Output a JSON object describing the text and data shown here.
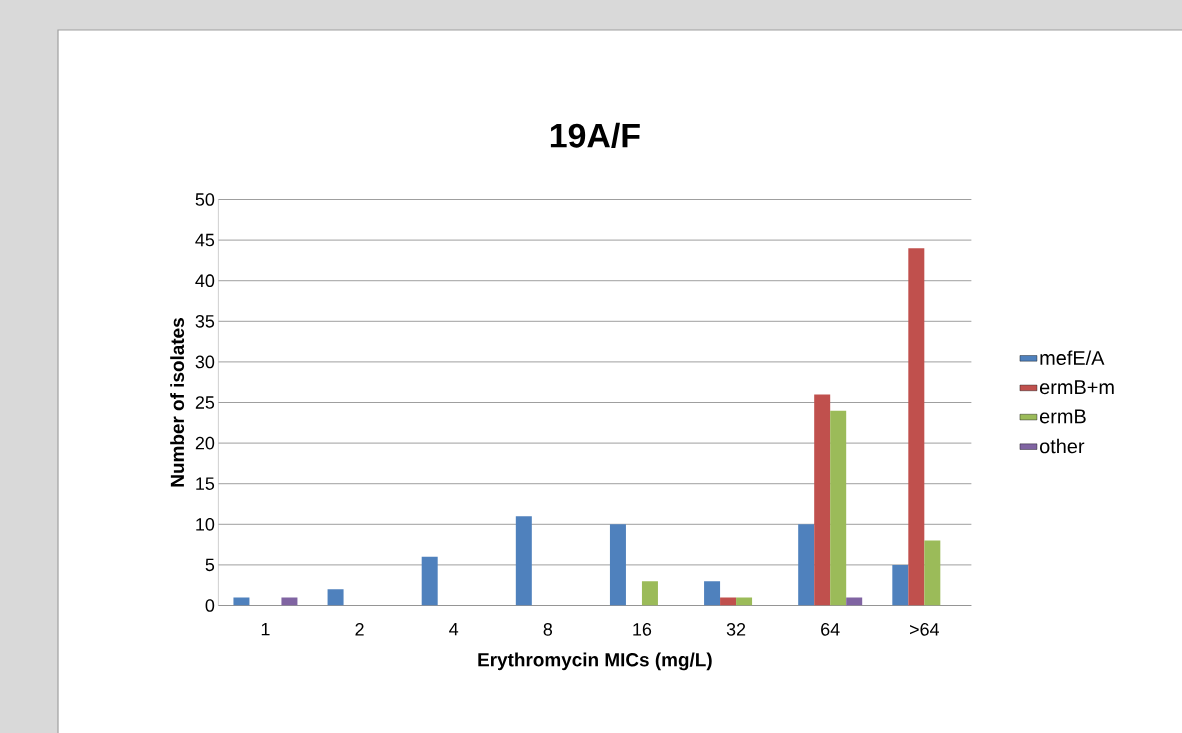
{
  "chart_data": {
    "type": "bar",
    "title": "19A/F",
    "xlabel": "Erythromycin MICs (mg/L)",
    "ylabel": "Number of isolates",
    "categories": [
      "1",
      "2",
      "4",
      "8",
      "16",
      "32",
      "64",
      ">64"
    ],
    "series": [
      {
        "name": "mefE/A",
        "color": "#4f81bd",
        "values": [
          1,
          2,
          6,
          11,
          10,
          3,
          10,
          5
        ]
      },
      {
        "name": "ermB+m",
        "color": "#c0504d",
        "values": [
          0,
          0,
          0,
          0,
          0,
          1,
          26,
          44
        ]
      },
      {
        "name": "ermB",
        "color": "#9bbb59",
        "values": [
          0,
          0,
          0,
          0,
          3,
          1,
          24,
          8
        ]
      },
      {
        "name": "other",
        "color": "#8064a2",
        "values": [
          1,
          0,
          0,
          0,
          0,
          0,
          1,
          0
        ]
      }
    ],
    "ylim": [
      0,
      50
    ],
    "yticks": [
      0,
      5,
      10,
      15,
      20,
      25,
      30,
      35,
      40,
      45,
      50
    ],
    "grid": "y",
    "legend": "right"
  }
}
